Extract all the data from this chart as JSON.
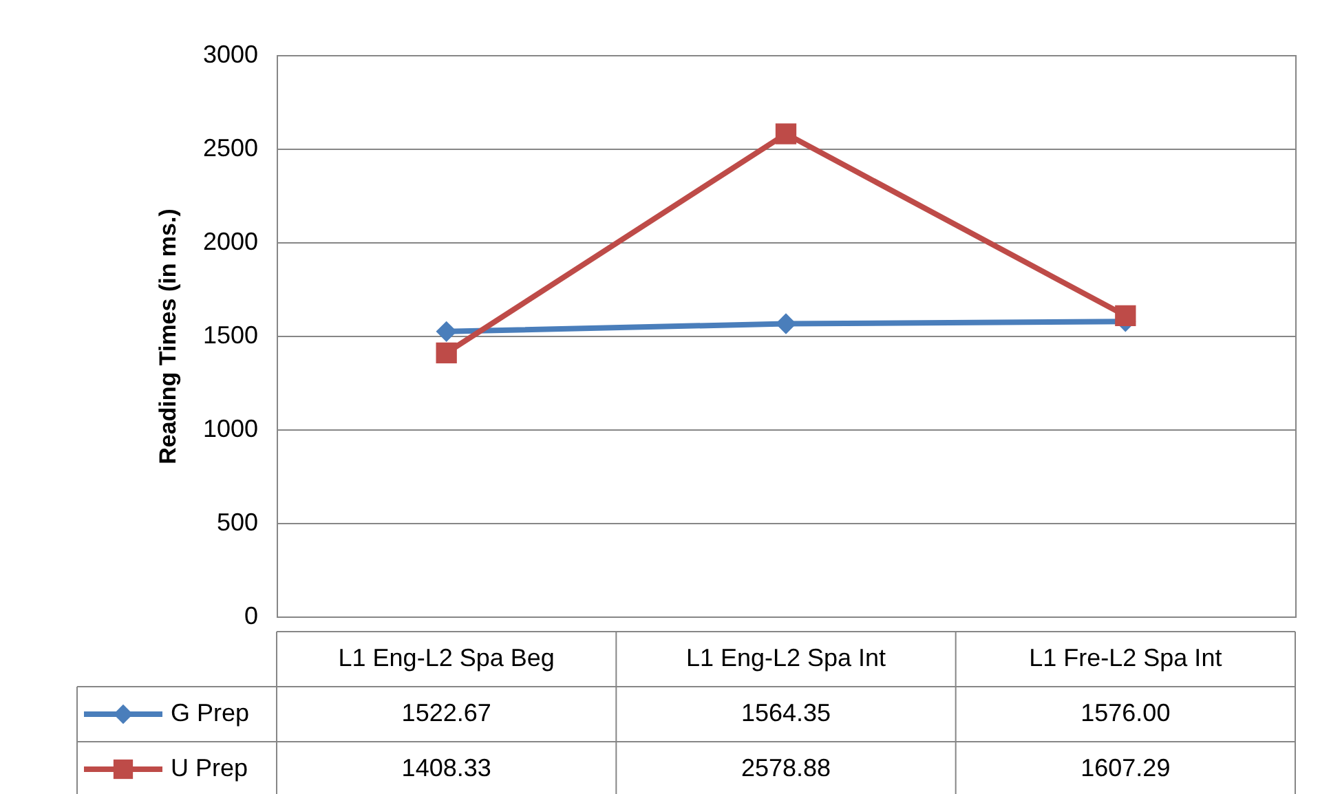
{
  "chart_data": {
    "type": "line",
    "ylabel": "Reading Times (in ms.)",
    "categories": [
      "L1 Eng-L2 Spa Beg",
      "L1 Eng-L2 Spa Int",
      "L1 Fre-L2 Spa Int"
    ],
    "series": [
      {
        "name": "G Prep",
        "color": "#4a7ebb",
        "marker": "diamond",
        "values": [
          1522.67,
          1564.35,
          1576.0
        ],
        "value_labels": [
          "1522.67",
          "1564.35",
          "1576.00"
        ]
      },
      {
        "name": "U Prep",
        "color": "#be4b48",
        "marker": "square",
        "values": [
          1408.33,
          2578.88,
          1607.29
        ],
        "value_labels": [
          "1408.33",
          "2578.88",
          "1607.29"
        ]
      }
    ],
    "ylim": [
      0,
      3000
    ],
    "yticks": [
      0,
      500,
      1000,
      1500,
      2000,
      2500,
      3000
    ],
    "grid": "y",
    "legend": "bottom",
    "line_style": "solid"
  }
}
